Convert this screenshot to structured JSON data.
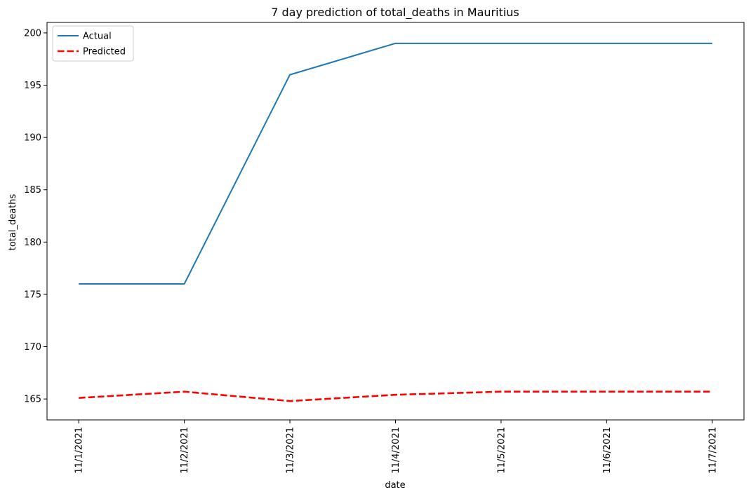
{
  "chart_data": {
    "type": "line",
    "title": "7 day prediction of total_deaths in Mauritius",
    "xlabel": "date",
    "ylabel": "total_deaths",
    "categories": [
      "11/1/2021",
      "11/2/2021",
      "11/3/2021",
      "11/4/2021",
      "11/5/2021",
      "11/6/2021",
      "11/7/2021"
    ],
    "yticks": [
      165,
      170,
      175,
      180,
      185,
      190,
      195,
      200
    ],
    "ylim": [
      163.0,
      201.0
    ],
    "grid": false,
    "legend_position": "top-left",
    "series": [
      {
        "name": "Actual",
        "values": [
          176,
          176,
          196,
          199,
          199,
          199,
          199
        ],
        "color": "#1f77b4",
        "style": "solid"
      },
      {
        "name": "Predicted",
        "values": [
          165.1,
          165.7,
          164.8,
          165.4,
          165.7,
          165.7,
          165.7
        ],
        "color": "#ff0000",
        "style": "dashed"
      }
    ]
  }
}
